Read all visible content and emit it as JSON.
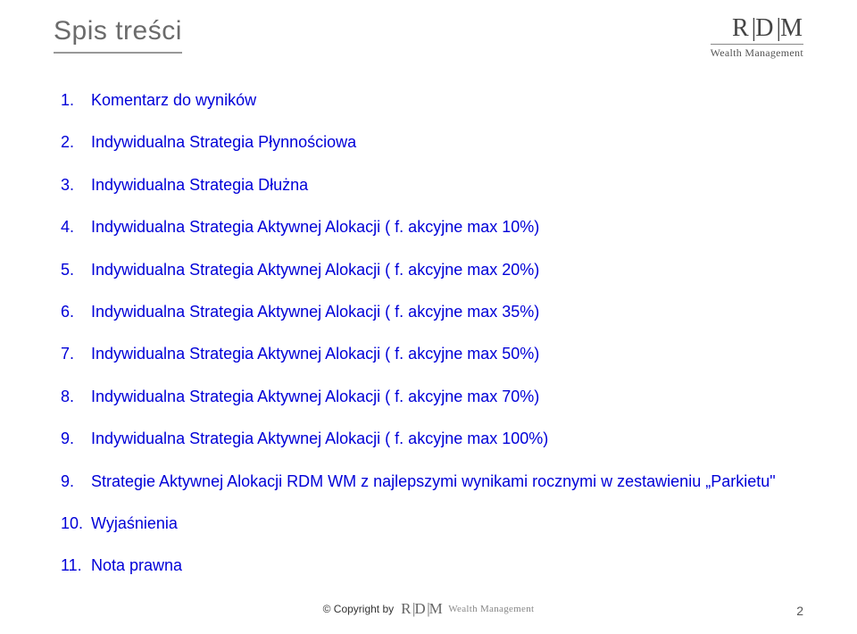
{
  "title": "Spis treści",
  "logo": {
    "main": "RDM",
    "sub": "Wealth Management"
  },
  "toc": [
    {
      "num": "1.",
      "text": "Komentarz do wyników"
    },
    {
      "num": "2.",
      "text": "Indywidualna Strategia Płynnościowa"
    },
    {
      "num": "3.",
      "text": "Indywidualna Strategia Dłużna"
    },
    {
      "num": "4.",
      "text": "Indywidualna Strategia Aktywnej Alokacji ( f. akcyjne max 10%)"
    },
    {
      "num": "5.",
      "text": "Indywidualna Strategia Aktywnej Alokacji ( f. akcyjne max 20%)"
    },
    {
      "num": "6.",
      "text": "Indywidualna Strategia Aktywnej Alokacji ( f. akcyjne max 35%)"
    },
    {
      "num": "7.",
      "text": "Indywidualna Strategia Aktywnej Alokacji ( f. akcyjne max 50%)"
    },
    {
      "num": "8.",
      "text": "Indywidualna Strategia Aktywnej Alokacji ( f. akcyjne max 70%)"
    },
    {
      "num": "9.",
      "text": "Indywidualna Strategia Aktywnej Alokacji ( f. akcyjne max 100%)"
    },
    {
      "num": "9.",
      "text": "Strategie Aktywnej Alokacji RDM WM z najlepszymi wynikami rocznymi w zestawieniu „Parkietu\"",
      "justified": true
    },
    {
      "num": "10.",
      "text": "Wyjaśnienia"
    },
    {
      "num": "11.",
      "text": "Nota prawna"
    }
  ],
  "footer": {
    "copyright": "© Copyright by",
    "logo_main": "RDM",
    "logo_sub": "Wealth Management"
  },
  "page_number": "2",
  "colors": {
    "title": "#6b6b6b",
    "underline": "#999999",
    "link": "#0000d8",
    "background": "#ffffff"
  }
}
